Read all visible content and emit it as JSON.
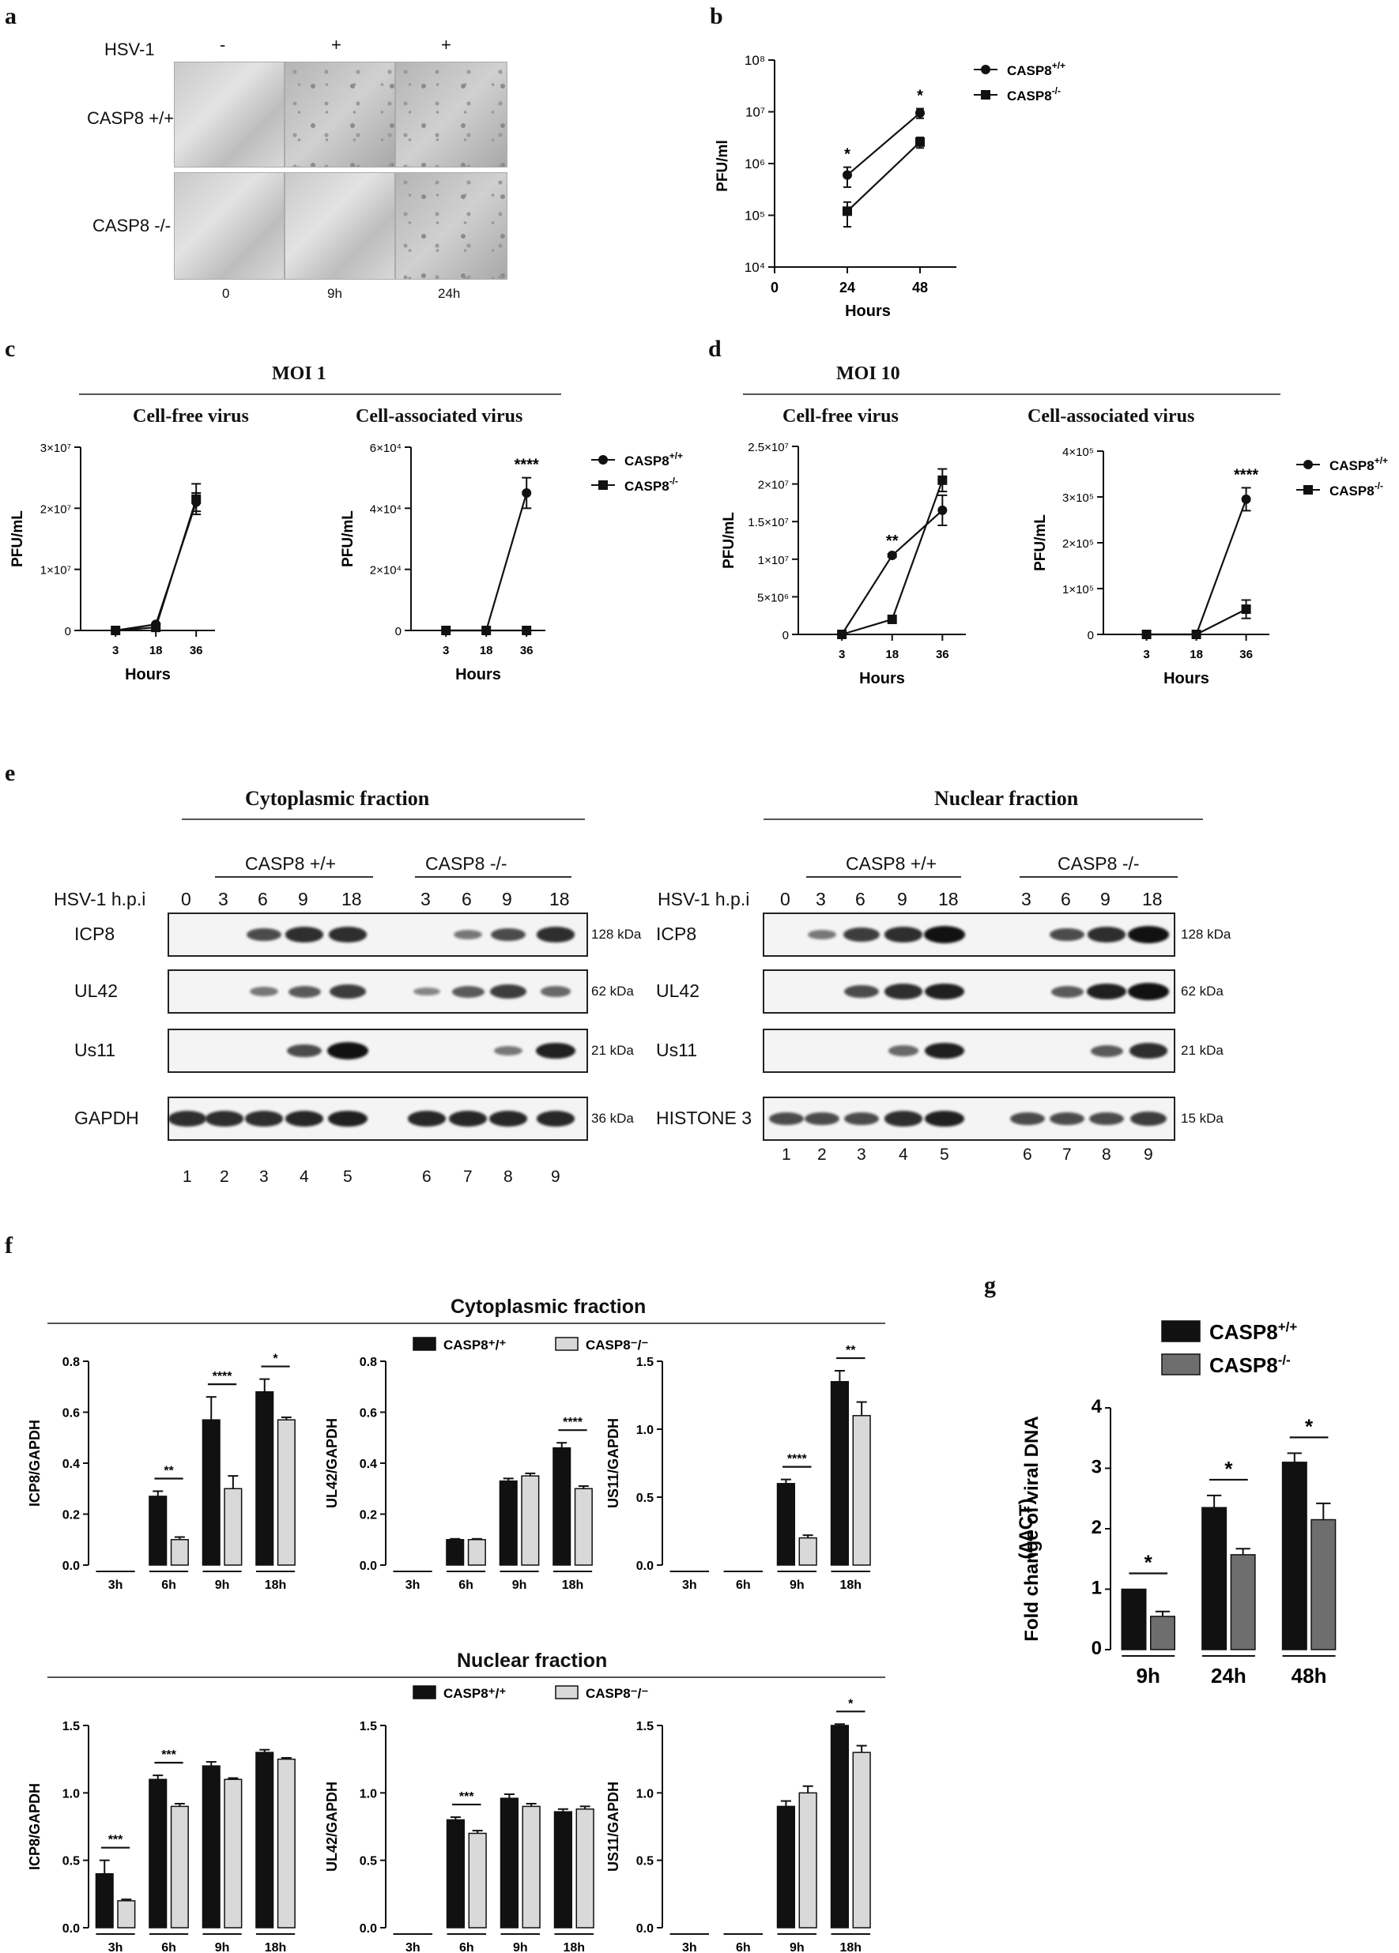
{
  "panel_labels": {
    "a": "a",
    "b": "b",
    "c": "c",
    "d": "d",
    "e": "e",
    "f": "f",
    "g": "g"
  },
  "colors": {
    "wt": "#111111",
    "ko_light": "#d9d9d9",
    "ko_dark": "#6e6e6e",
    "line": "#222222"
  },
  "panel_a": {
    "row_header": "HSV-1",
    "hsv_states": [
      "-",
      "+",
      "+"
    ],
    "rows": [
      "CASP8 +/+",
      "CASP8 -/-"
    ],
    "time_labels": [
      "0",
      "9h",
      "24h"
    ]
  },
  "panel_b": {
    "ylabel": "PFU/ml",
    "xlabel": "Hours",
    "yticks": [
      "10⁴",
      "10⁵",
      "10⁶",
      "10⁷",
      "10⁸"
    ],
    "xticks": [
      "0",
      "24",
      "48"
    ],
    "legend": [
      "CASP8+/+",
      "CASP8-/-"
    ],
    "stars": [
      "*",
      "*"
    ]
  },
  "panel_c": {
    "moi": "MOI 1",
    "sub1": "Cell-free virus",
    "sub2": "Cell-associated virus",
    "left": {
      "yticks": [
        "0",
        "1×10⁷",
        "2×10⁷",
        "3×10⁷"
      ]
    },
    "right": {
      "yticks": [
        "0",
        "2×10⁴",
        "4×10⁴",
        "6×10⁴"
      ],
      "star": "****"
    },
    "legend": [
      "CASP8+/+",
      "CASP8-/-"
    ],
    "ylabel": "PFU/mL",
    "xlabel": "Hours",
    "xticks": [
      "3",
      "18",
      "36"
    ]
  },
  "panel_d": {
    "moi": "MOI 10",
    "sub1": "Cell-free virus",
    "sub2": "Cell-associated virus",
    "left": {
      "yticks": [
        "0",
        "5×10⁶",
        "1×10⁷",
        "1.5×10⁷",
        "2×10⁷",
        "2.5×10⁷"
      ],
      "star": "**"
    },
    "right": {
      "yticks": [
        "0",
        "1×10⁵",
        "2×10⁵",
        "3×10⁵",
        "4×10⁵"
      ],
      "star": "****"
    },
    "legend": [
      "CASP8+/+",
      "CASP8-/-"
    ],
    "ylabel": "PFU/mL",
    "xlabel": "Hours",
    "xticks": [
      "3",
      "18",
      "36"
    ]
  },
  "panel_e": {
    "cyto_title": "Cytoplasmic fraction",
    "nuc_title": "Nuclear fraction",
    "group_wt": "CASP8 +/+",
    "group_ko": "CASP8 -/-",
    "hpi_label": "HSV-1 h.p.i",
    "hpi_wt": [
      "0",
      "3",
      "6",
      "9",
      "18"
    ],
    "hpi_ko": [
      "3",
      "6",
      "9",
      "18"
    ],
    "cyto_blots": [
      "ICP8",
      "UL42",
      "Us11",
      "GAPDH"
    ],
    "cyto_kda": [
      "128 kDa",
      "62 kDa",
      "21 kDa",
      "36 kDa"
    ],
    "nuc_blots": [
      "ICP8",
      "UL42",
      "Us11",
      "HISTONE 3"
    ],
    "nuc_kda": [
      "128 kDa",
      "62 kDa",
      "21 kDa",
      "15 kDa"
    ],
    "lanes": [
      "1",
      "2",
      "3",
      "4",
      "5",
      "6",
      "7",
      "8",
      "9"
    ]
  },
  "panel_f": {
    "cyto_title": "Cytoplasmic fraction",
    "nuc_title": "Nuclear fraction",
    "legend": [
      "CASP8⁺/⁺",
      "CASP8⁻/⁻"
    ]
  },
  "panel_g": {
    "legend": [
      "CASP8+/+",
      "CASP8-/-"
    ],
    "ylabel_1": "Fold change of viral DNA",
    "ylabel_2": "(∆∆CT)"
  },
  "chart_data": [
    {
      "id": "b",
      "type": "line",
      "yscale": "log",
      "xlabel": "Hours",
      "ylabel": "PFU/ml",
      "ylim": [
        10000,
        100000000
      ],
      "xlim": [
        0,
        60
      ],
      "x": [
        24,
        48
      ],
      "series": [
        {
          "name": "CASP8+/+",
          "marker": "circle",
          "values": [
            600000,
            9500000
          ],
          "errors": [
            250000,
            2000000
          ]
        },
        {
          "name": "CASP8-/-",
          "marker": "square",
          "values": [
            120000,
            2600000
          ],
          "errors": [
            60000,
            600000
          ]
        }
      ],
      "annotations": [
        {
          "x": 24,
          "text": "*"
        },
        {
          "x": 48,
          "text": "*"
        }
      ]
    },
    {
      "id": "c_left",
      "type": "line",
      "title": "Cell-free virus",
      "xlabel": "Hours",
      "ylabel": "PFU/mL",
      "ylim": [
        0,
        30000000
      ],
      "categories": [
        "3",
        "18",
        "36"
      ],
      "series": [
        {
          "name": "CASP8+/+",
          "marker": "circle",
          "values": [
            0,
            1000000,
            21000000
          ],
          "errors": [
            0,
            0,
            1500000
          ]
        },
        {
          "name": "CASP8-/-",
          "marker": "square",
          "values": [
            0,
            500000,
            21500000
          ],
          "errors": [
            0,
            0,
            2500000
          ]
        }
      ]
    },
    {
      "id": "c_right",
      "type": "line",
      "title": "Cell-associated virus",
      "xlabel": "Hours",
      "ylabel": "PFU/mL",
      "ylim": [
        0,
        60000
      ],
      "categories": [
        "3",
        "18",
        "36"
      ],
      "series": [
        {
          "name": "CASP8+/+",
          "marker": "circle",
          "values": [
            0,
            0,
            45000
          ],
          "errors": [
            0,
            0,
            5000
          ]
        },
        {
          "name": "CASP8-/-",
          "marker": "square",
          "values": [
            0,
            0,
            0
          ],
          "errors": [
            0,
            0,
            0
          ]
        }
      ],
      "annotations": [
        {
          "x": "36",
          "text": "****"
        }
      ]
    },
    {
      "id": "d_left",
      "type": "line",
      "title": "Cell-free virus",
      "xlabel": "Hours",
      "ylabel": "PFU/mL",
      "ylim": [
        0,
        25000000
      ],
      "categories": [
        "3",
        "18",
        "36"
      ],
      "series": [
        {
          "name": "CASP8+/+",
          "marker": "circle",
          "values": [
            0,
            10500000,
            16500000
          ],
          "errors": [
            0,
            200000,
            2000000
          ]
        },
        {
          "name": "CASP8-/-",
          "marker": "square",
          "values": [
            0,
            2000000,
            20500000
          ],
          "errors": [
            0,
            0,
            1500000
          ]
        }
      ],
      "annotations": [
        {
          "x": "18",
          "text": "**"
        }
      ]
    },
    {
      "id": "d_right",
      "type": "line",
      "title": "Cell-associated virus",
      "xlabel": "Hours",
      "ylabel": "PFU/mL",
      "ylim": [
        0,
        400000
      ],
      "categories": [
        "3",
        "18",
        "36"
      ],
      "series": [
        {
          "name": "CASP8+/+",
          "marker": "circle",
          "values": [
            0,
            0,
            295000
          ],
          "errors": [
            0,
            0,
            25000
          ]
        },
        {
          "name": "CASP8-/-",
          "marker": "square",
          "values": [
            0,
            0,
            55000
          ],
          "errors": [
            0,
            0,
            20000
          ]
        }
      ],
      "annotations": [
        {
          "x": "36",
          "text": "****"
        }
      ]
    },
    {
      "id": "f_cyto_icp8",
      "type": "bar",
      "ylabel": "ICP8/GAPDH",
      "ylim": [
        0,
        0.8
      ],
      "yticks": [
        "0.0",
        "0.2",
        "0.4",
        "0.6",
        "0.8"
      ],
      "categories": [
        "3h",
        "6h",
        "9h",
        "18h"
      ],
      "series": [
        {
          "name": "CASP8+/+",
          "values": [
            0,
            0.27,
            0.57,
            0.68
          ],
          "errors": [
            0,
            0.02,
            0.09,
            0.05
          ]
        },
        {
          "name": "CASP8-/-",
          "values": [
            0,
            0.1,
            0.3,
            0.57
          ],
          "errors": [
            0,
            0.01,
            0.05,
            0.01
          ]
        }
      ],
      "annotations": [
        {
          "x": "6h",
          "text": "**"
        },
        {
          "x": "9h",
          "text": "****"
        },
        {
          "x": "18h",
          "text": "*"
        }
      ]
    },
    {
      "id": "f_cyto_ul42",
      "type": "bar",
      "ylabel": "UL42/GAPDH",
      "ylim": [
        0,
        0.8
      ],
      "yticks": [
        "0.0",
        "0.2",
        "0.4",
        "0.6",
        "0.8"
      ],
      "categories": [
        "3h",
        "6h",
        "9h",
        "18h"
      ],
      "series": [
        {
          "name": "CASP8+/+",
          "values": [
            0,
            0.1,
            0.33,
            0.46
          ],
          "errors": [
            0,
            0.003,
            0.01,
            0.02
          ]
        },
        {
          "name": "CASP8-/-",
          "values": [
            0,
            0.1,
            0.35,
            0.3
          ],
          "errors": [
            0,
            0.003,
            0.01,
            0.01
          ]
        }
      ],
      "annotations": [
        {
          "x": "18h",
          "text": "****"
        }
      ]
    },
    {
      "id": "f_cyto_us11",
      "type": "bar",
      "ylabel": "US11/GAPDH",
      "ylim": [
        0,
        1.5
      ],
      "yticks": [
        "0.0",
        "0.5",
        "1.0",
        "1.5"
      ],
      "categories": [
        "3h",
        "6h",
        "9h",
        "18h"
      ],
      "series": [
        {
          "name": "CASP8+/+",
          "values": [
            0,
            0,
            0.6,
            1.35
          ],
          "errors": [
            0,
            0,
            0.03,
            0.08
          ]
        },
        {
          "name": "CASP8-/-",
          "values": [
            0,
            0,
            0.2,
            1.1
          ],
          "errors": [
            0,
            0,
            0.02,
            0.1
          ]
        }
      ],
      "annotations": [
        {
          "x": "9h",
          "text": "****"
        },
        {
          "x": "18h",
          "text": "**"
        }
      ]
    },
    {
      "id": "f_nuc_icp8",
      "type": "bar",
      "ylabel": "ICP8/GAPDH",
      "ylim": [
        0,
        1.5
      ],
      "yticks": [
        "0.0",
        "0.5",
        "1.0",
        "1.5"
      ],
      "categories": [
        "3h",
        "6h",
        "9h",
        "18h"
      ],
      "series": [
        {
          "name": "CASP8+/+",
          "values": [
            0.4,
            1.1,
            1.2,
            1.3
          ],
          "errors": [
            0.1,
            0.03,
            0.03,
            0.02
          ]
        },
        {
          "name": "CASP8-/-",
          "values": [
            0.2,
            0.9,
            1.1,
            1.25
          ],
          "errors": [
            0.01,
            0.02,
            0.01,
            0.01
          ]
        }
      ],
      "annotations": [
        {
          "x": "3h",
          "text": "***"
        },
        {
          "x": "6h",
          "text": "***"
        }
      ]
    },
    {
      "id": "f_nuc_ul42",
      "type": "bar",
      "ylabel": "UL42/GAPDH",
      "ylim": [
        0,
        1.5
      ],
      "yticks": [
        "0.0",
        "0.5",
        "1.0",
        "1.5"
      ],
      "categories": [
        "3h",
        "6h",
        "9h",
        "18h"
      ],
      "series": [
        {
          "name": "CASP8+/+",
          "values": [
            0,
            0.8,
            0.96,
            0.86
          ],
          "errors": [
            0,
            0.02,
            0.03,
            0.02
          ]
        },
        {
          "name": "CASP8-/-",
          "values": [
            0,
            0.7,
            0.9,
            0.88
          ],
          "errors": [
            0,
            0.02,
            0.02,
            0.02
          ]
        }
      ],
      "annotations": [
        {
          "x": "6h",
          "text": "***"
        }
      ]
    },
    {
      "id": "f_nuc_us11",
      "type": "bar",
      "ylabel": "US11/GAPDH",
      "ylim": [
        0,
        1.5
      ],
      "yticks": [
        "0.0",
        "0.5",
        "1.0",
        "1.5"
      ],
      "categories": [
        "3h",
        "6h",
        "9h",
        "18h"
      ],
      "series": [
        {
          "name": "CASP8+/+",
          "values": [
            0,
            0,
            0.9,
            1.5
          ],
          "errors": [
            0,
            0,
            0.04,
            0.01
          ]
        },
        {
          "name": "CASP8-/-",
          "values": [
            0,
            0,
            1.0,
            1.3
          ],
          "errors": [
            0,
            0,
            0.05,
            0.05
          ]
        }
      ],
      "annotations": [
        {
          "x": "18h",
          "text": "*"
        }
      ]
    },
    {
      "id": "g",
      "type": "bar",
      "ylabel": "Fold change of viral DNA (∆∆CT)",
      "ylim": [
        0,
        4
      ],
      "yticks": [
        "0",
        "1",
        "2",
        "3",
        "4"
      ],
      "categories": [
        "9h",
        "24h",
        "48h"
      ],
      "series": [
        {
          "name": "CASP8+/+",
          "values": [
            1.0,
            2.35,
            3.1
          ],
          "errors": [
            0,
            0.2,
            0.15
          ]
        },
        {
          "name": "CASP8-/-",
          "values": [
            0.55,
            1.57,
            2.15
          ],
          "errors": [
            0.08,
            0.1,
            0.27
          ]
        }
      ],
      "annotations": [
        {
          "x": "9h",
          "text": "*"
        },
        {
          "x": "24h",
          "text": "*"
        },
        {
          "x": "48h",
          "text": "*"
        }
      ]
    }
  ]
}
